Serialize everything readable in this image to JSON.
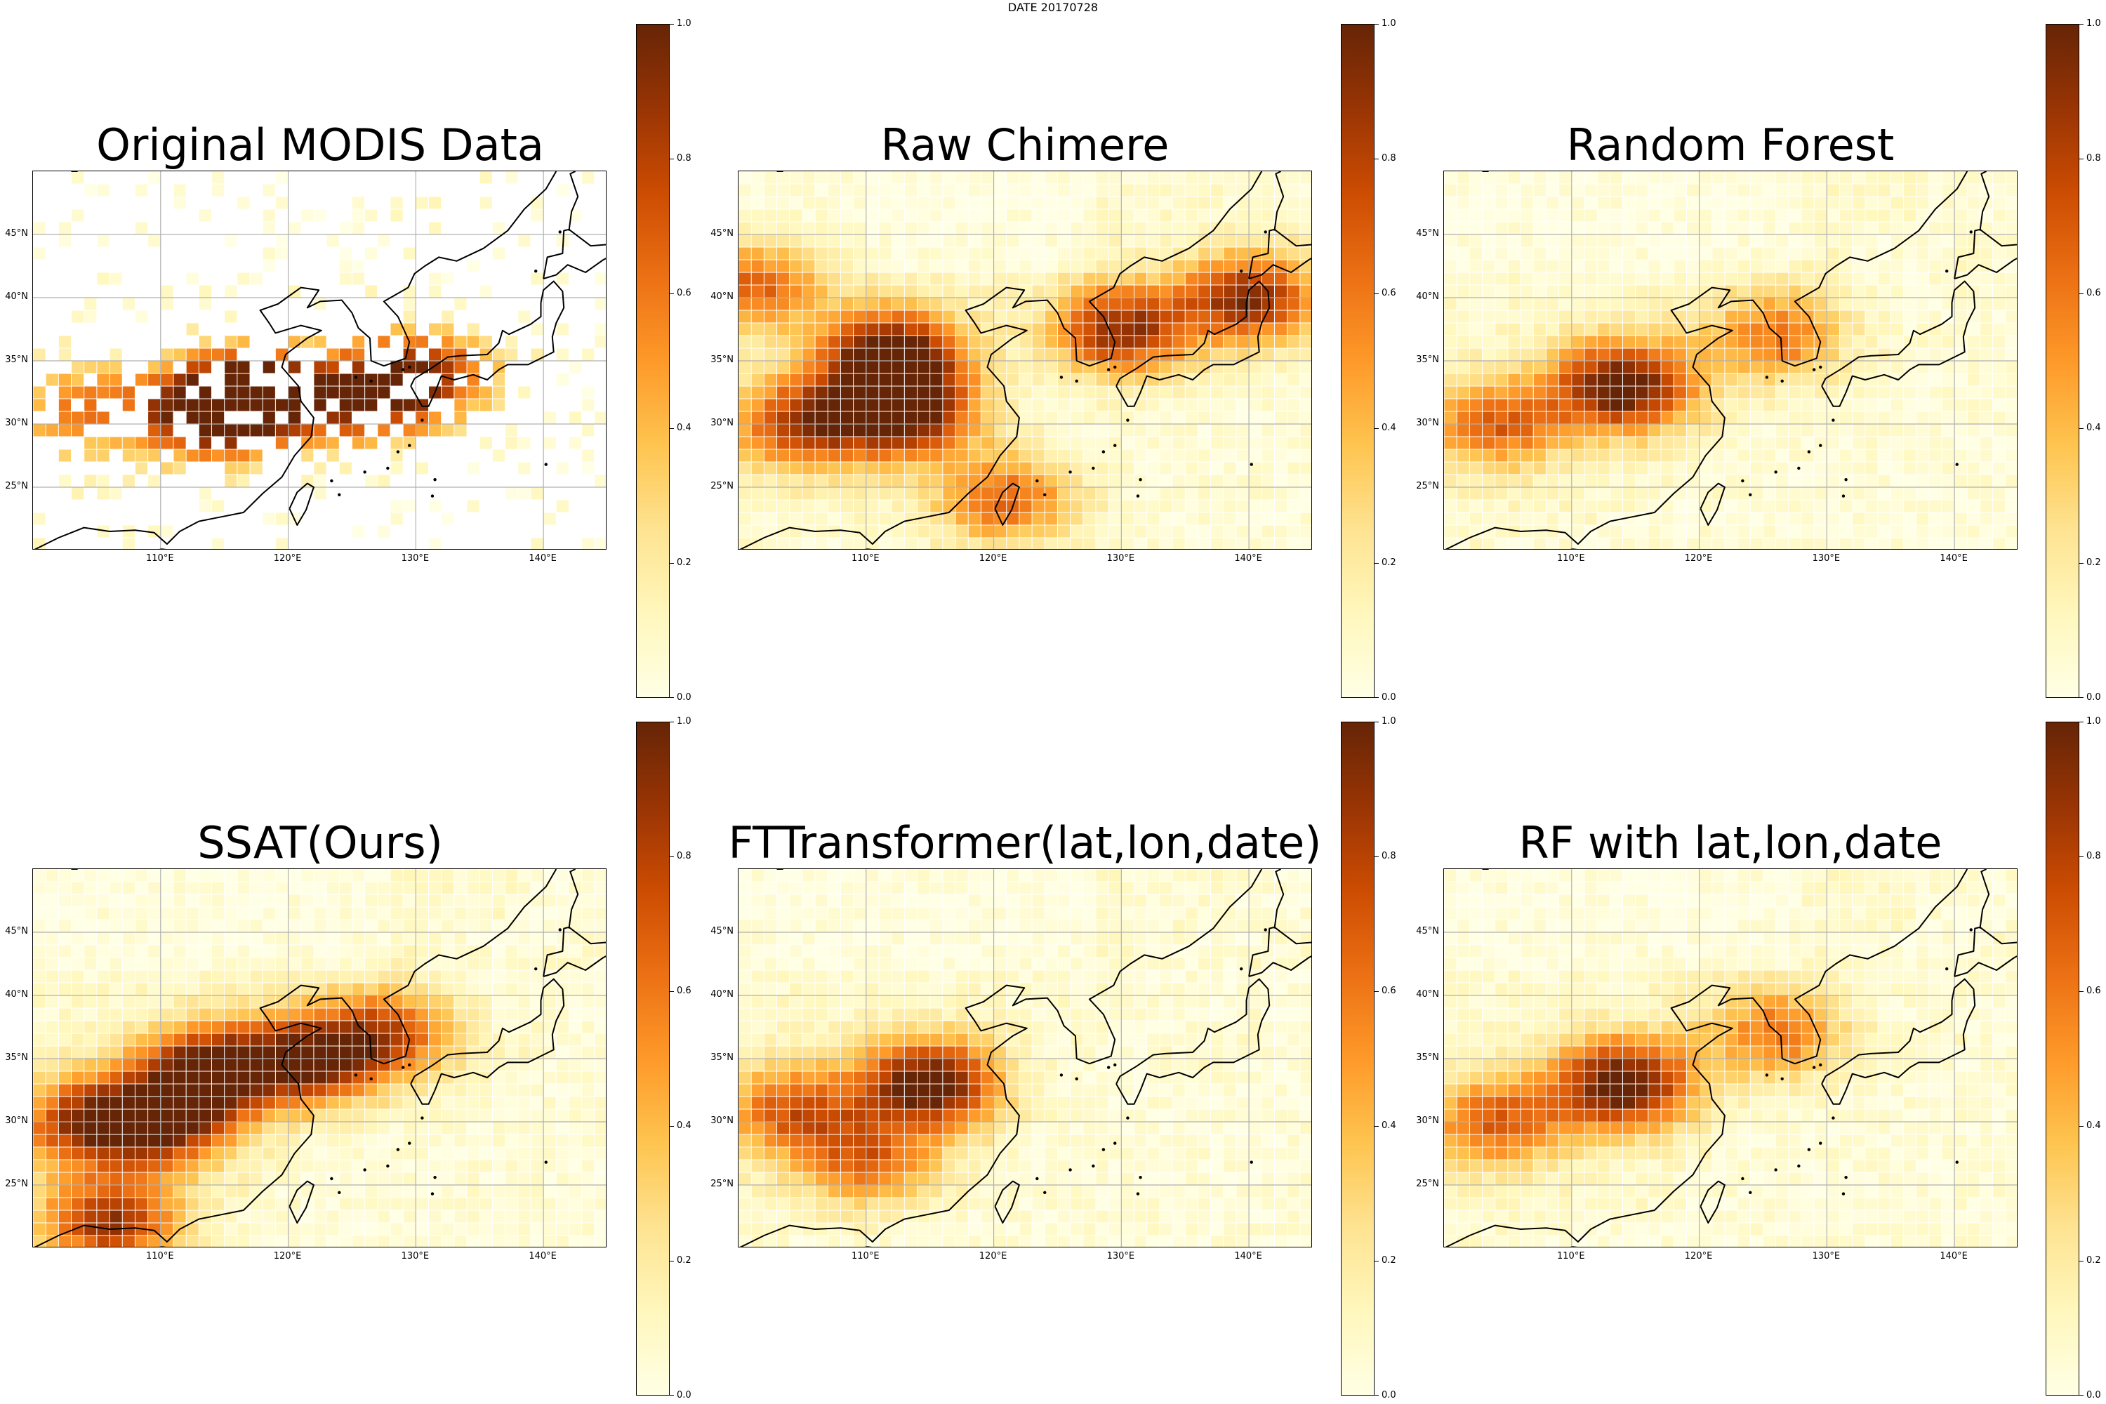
{
  "figure": {
    "suptitle": "DATE 20170728"
  },
  "colors": {
    "colormap": "YlOrBr",
    "stops": [
      "#ffffe5",
      "#fff7bc",
      "#fee391",
      "#fec44f",
      "#fe9929",
      "#ec7014",
      "#cc4c02",
      "#993404",
      "#662506"
    ],
    "coastline": "#000000",
    "gridline": "#b0b0b0"
  },
  "axes": {
    "lat_ticks": [
      "25°N",
      "30°N",
      "35°N",
      "40°N",
      "45°N"
    ],
    "lon_ticks": [
      "110°E",
      "120°E",
      "130°E",
      "140°E"
    ],
    "colorbar_ticks": [
      "0.0",
      "0.2",
      "0.4",
      "0.6",
      "0.8",
      "1.0"
    ]
  },
  "panels": [
    {
      "title": "Original MODIS Data"
    },
    {
      "title": "Raw Chimere"
    },
    {
      "title": "Random Forest"
    },
    {
      "title": "SSAT(Ours)"
    },
    {
      "title": "FTTransformer(lat,lon,date)"
    },
    {
      "title": "RF with lat,lon,date"
    }
  ],
  "chart_data": {
    "type": "heatmap",
    "grid_step_deg": 1,
    "lon_range": [
      100,
      145
    ],
    "lat_range": [
      20,
      50
    ],
    "value_range": [
      0,
      1
    ],
    "colorbar": "YlOrBr",
    "panels": [
      {
        "name": "Original MODIS Data",
        "sparse": true,
        "hotspots": [
          {
            "lon": 114,
            "lat": 31,
            "peak": 1.0
          },
          {
            "lon": 118,
            "lat": 32.5,
            "peak": 0.9
          },
          {
            "lon": 126,
            "lat": 32,
            "peak": 0.75
          },
          {
            "lon": 131,
            "lat": 34,
            "peak": 0.7
          },
          {
            "lon": 104,
            "lat": 31,
            "peak": 0.5
          }
        ]
      },
      {
        "name": "Raw Chimere",
        "sparse": false,
        "hotspots": [
          {
            "lon": 112,
            "lat": 35.5,
            "peak": 1.0
          },
          {
            "lon": 113,
            "lat": 31,
            "peak": 0.95
          },
          {
            "lon": 130,
            "lat": 37.5,
            "peak": 0.85
          },
          {
            "lon": 140,
            "lat": 40,
            "peak": 0.85
          },
          {
            "lon": 105,
            "lat": 30,
            "peak": 0.75
          },
          {
            "lon": 101,
            "lat": 41,
            "peak": 0.6
          },
          {
            "lon": 121,
            "lat": 24,
            "peak": 0.6
          }
        ]
      },
      {
        "name": "Random Forest",
        "sparse": false,
        "hotspots": [
          {
            "lon": 114,
            "lat": 33,
            "peak": 1.0
          },
          {
            "lon": 104,
            "lat": 30,
            "peak": 0.6
          },
          {
            "lon": 126,
            "lat": 37,
            "peak": 0.55
          }
        ]
      },
      {
        "name": "SSAT(Ours)",
        "sparse": false,
        "hotspots": [
          {
            "lon": 114,
            "lat": 34,
            "peak": 1.0
          },
          {
            "lon": 122,
            "lat": 35,
            "peak": 0.85
          },
          {
            "lon": 110,
            "lat": 30,
            "peak": 0.85
          },
          {
            "lon": 104,
            "lat": 30,
            "peak": 0.7
          },
          {
            "lon": 106,
            "lat": 22,
            "peak": 0.8
          },
          {
            "lon": 128,
            "lat": 37,
            "peak": 0.6
          }
        ]
      },
      {
        "name": "FTTransformer(lat,lon,date)",
        "sparse": false,
        "hotspots": [
          {
            "lon": 115,
            "lat": 33,
            "peak": 1.0
          },
          {
            "lon": 104,
            "lat": 31,
            "peak": 0.6
          },
          {
            "lon": 110,
            "lat": 27,
            "peak": 0.55
          }
        ]
      },
      {
        "name": "RF with lat,lon,date",
        "sparse": false,
        "hotspots": [
          {
            "lon": 114,
            "lat": 33,
            "peak": 1.0
          },
          {
            "lon": 104,
            "lat": 30,
            "peak": 0.6
          },
          {
            "lon": 126,
            "lat": 37,
            "peak": 0.55
          }
        ]
      }
    ]
  }
}
